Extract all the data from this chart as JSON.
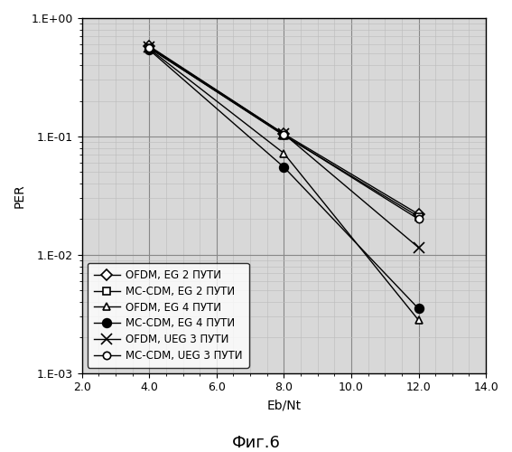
{
  "title": "Фиг.6",
  "xlabel": "Eb/Nt",
  "ylabel": "PER",
  "xlim": [
    2.0,
    14.0
  ],
  "ylim_log": [
    0.001,
    1.0
  ],
  "xticks": [
    2.0,
    4.0,
    6.0,
    8.0,
    10.0,
    12.0,
    14.0
  ],
  "series": [
    {
      "label": "OFDM, EG 2 ПУТИ",
      "x": [
        4.0,
        8.0,
        12.0
      ],
      "y": [
        0.58,
        0.105,
        0.022
      ],
      "marker": "D",
      "ms": 6,
      "mfc": "white",
      "mec": "black",
      "lw": 1.0,
      "ls": "-"
    },
    {
      "label": "MC-CDM, EG 2 ПУТИ",
      "x": [
        4.0,
        8.0,
        12.0
      ],
      "y": [
        0.56,
        0.102,
        0.021
      ],
      "marker": "s",
      "ms": 6,
      "mfc": "white",
      "mec": "black",
      "lw": 1.0,
      "ls": "-"
    },
    {
      "label": "OFDM, EG 4 ПУТИ",
      "x": [
        4.0,
        8.0,
        12.0
      ],
      "y": [
        0.55,
        0.072,
        0.0028
      ],
      "marker": "^",
      "ms": 6,
      "mfc": "white",
      "mec": "black",
      "lw": 1.0,
      "ls": "-"
    },
    {
      "label": "MC-CDM, EG 4 ПУТИ",
      "x": [
        4.0,
        8.0,
        12.0
      ],
      "y": [
        0.54,
        0.055,
        0.0035
      ],
      "marker": "o",
      "ms": 7,
      "mfc": "black",
      "mec": "black",
      "lw": 1.0,
      "ls": "-"
    },
    {
      "label": "OFDM, UEG 3 ПУТИ",
      "x": [
        4.0,
        8.0,
        12.0
      ],
      "y": [
        0.57,
        0.105,
        0.0115
      ],
      "marker": "x",
      "ms": 8,
      "mfc": "black",
      "mec": "black",
      "lw": 1.0,
      "ls": "-"
    },
    {
      "label": "MC-CDM, UEG 3 ПУТИ",
      "x": [
        4.0,
        8.0,
        12.0
      ],
      "y": [
        0.56,
        0.103,
        0.02
      ],
      "marker": "o",
      "ms": 6,
      "mfc": "white",
      "mec": "black",
      "lw": 1.0,
      "ls": "-"
    }
  ],
  "bg_color": "#d8d8d8",
  "major_grid_color": "#888888",
  "minor_grid_color": "#bbbbbb",
  "legend_fontsize": 8.5,
  "axis_fontsize": 10,
  "title_fontsize": 13,
  "tick_fontsize": 9
}
